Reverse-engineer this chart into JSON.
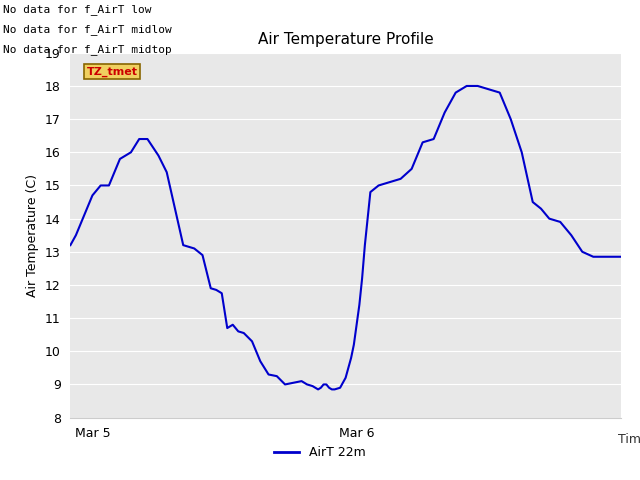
{
  "title": "Air Temperature Profile",
  "xlabel": "Time",
  "ylabel": "Air Temperature (C)",
  "ylim": [
    8.0,
    19.0
  ],
  "yticks": [
    8.0,
    9.0,
    10.0,
    11.0,
    12.0,
    13.0,
    14.0,
    15.0,
    16.0,
    17.0,
    18.0,
    19.0
  ],
  "background_color": "#e8e8e8",
  "line_color": "#0000cc",
  "legend_label": "AirT 22m",
  "annotations_text": [
    "No data for f_AirT low",
    "No data for f_AirT midlow",
    "No data for f_AirT midtop"
  ],
  "tz_label": "TZ_tmet",
  "time_points": [
    0.0,
    0.01,
    0.02,
    0.03,
    0.04,
    0.055,
    0.07,
    0.09,
    0.11,
    0.125,
    0.14,
    0.16,
    0.175,
    0.19,
    0.205,
    0.215,
    0.225,
    0.24,
    0.255,
    0.265,
    0.275,
    0.285,
    0.295,
    0.305,
    0.315,
    0.33,
    0.345,
    0.36,
    0.375,
    0.39,
    0.405,
    0.42,
    0.43,
    0.44,
    0.45,
    0.455,
    0.46,
    0.465,
    0.47,
    0.475,
    0.48,
    0.49,
    0.5,
    0.51,
    0.515,
    0.52,
    0.525,
    0.53,
    0.535,
    0.54,
    0.545,
    0.56,
    0.58,
    0.6,
    0.62,
    0.64,
    0.66,
    0.68,
    0.7,
    0.72,
    0.74,
    0.76,
    0.78,
    0.8,
    0.82,
    0.84,
    0.855,
    0.87,
    0.89,
    0.91,
    0.93,
    0.95,
    0.97,
    0.99,
    1.0
  ],
  "temperatures": [
    13.2,
    13.5,
    13.9,
    14.3,
    14.7,
    15.0,
    15.0,
    15.8,
    16.0,
    16.4,
    16.4,
    15.9,
    15.4,
    14.3,
    13.2,
    13.15,
    13.1,
    12.9,
    11.9,
    11.85,
    11.75,
    10.7,
    10.8,
    10.6,
    10.55,
    10.3,
    9.7,
    9.3,
    9.25,
    9.0,
    9.05,
    9.1,
    9.0,
    8.95,
    8.85,
    8.9,
    9.0,
    9.0,
    8.9,
    8.85,
    8.85,
    8.9,
    9.2,
    9.8,
    10.2,
    10.8,
    11.4,
    12.2,
    13.2,
    14.0,
    14.8,
    15.0,
    15.1,
    15.2,
    15.5,
    16.3,
    16.4,
    17.2,
    17.8,
    18.0,
    18.0,
    17.9,
    17.8,
    17.0,
    16.0,
    14.5,
    14.3,
    14.0,
    13.9,
    13.5,
    13.0,
    12.85,
    12.85,
    12.85,
    12.85
  ],
  "x_tick_positions": [
    0.04,
    0.52
  ],
  "x_tick_labels": [
    "Mar 5",
    "Mar 6"
  ]
}
